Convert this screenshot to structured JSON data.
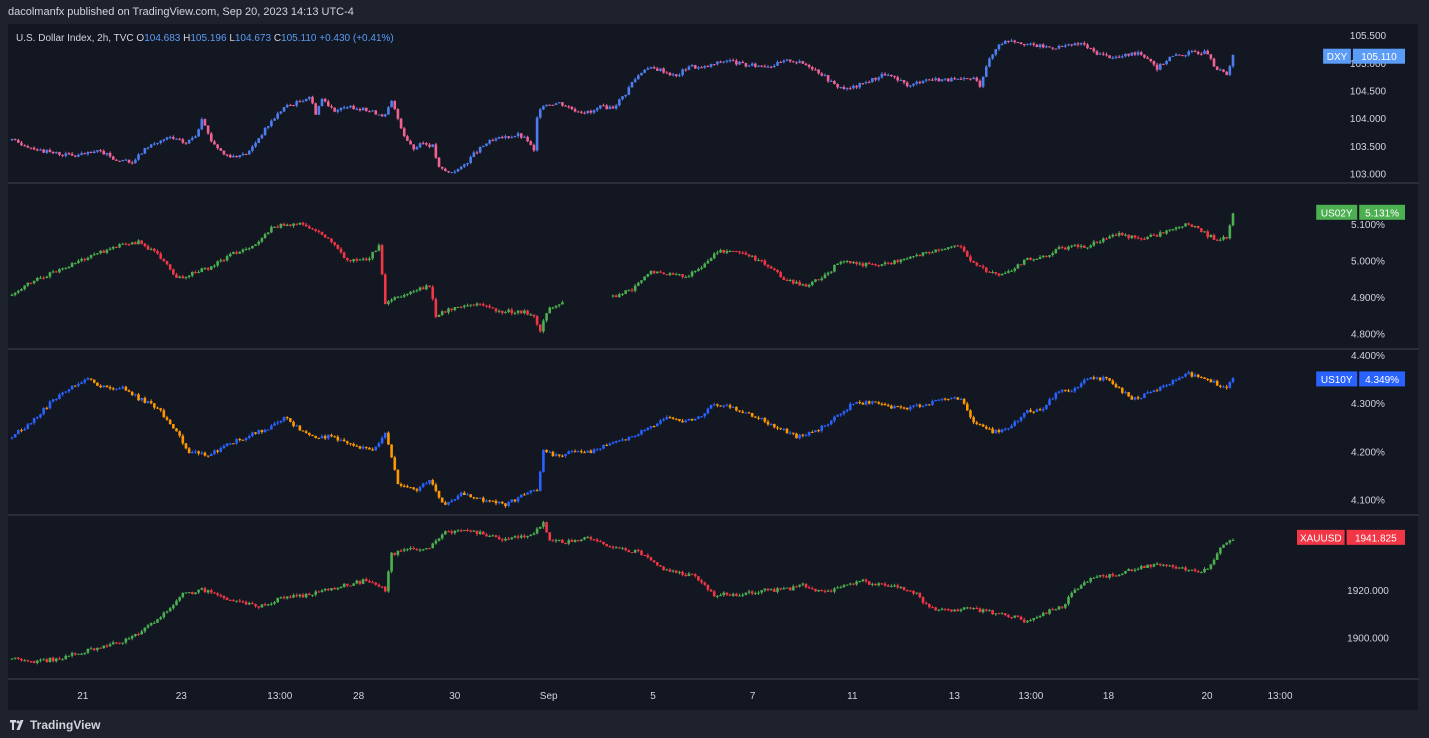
{
  "header": {
    "publisher": "dacolmanfx published on TradingView.com, Sep 20, 2023 14:13 UTC-4"
  },
  "footer": {
    "brand": "TradingView"
  },
  "colors": {
    "background": "#131722",
    "frame": "#1e222d",
    "axis_text": "#d1d4dc",
    "legend_blue": "#5b9cf6"
  },
  "chart_data": [
    {
      "type": "candlestick",
      "symbol": "DXY",
      "legend": {
        "name": "U.S. Dollar Index, 2h, TVC",
        "o_label": "O",
        "o": "104.683",
        "h_label": "H",
        "h": "105.196",
        "l_label": "L",
        "l": "104.673",
        "c_label": "C",
        "c": "105.110",
        "change": "+0.430 (+0.41%)"
      },
      "up_color": "#4c7ef0",
      "down_color": "#f06292",
      "price_label": "105.110",
      "label_color": "#5b9cf6",
      "ylim": [
        102.85,
        105.7
      ],
      "yticks": [
        "105.500",
        "105.000",
        "104.500",
        "104.000",
        "103.500",
        "103.000"
      ],
      "path": [
        [
          0,
          103.6
        ],
        [
          10,
          103.4
        ],
        [
          20,
          103.32
        ],
        [
          28,
          103.4
        ],
        [
          33,
          103.25
        ],
        [
          38,
          103.2
        ],
        [
          43,
          103.5
        ],
        [
          50,
          103.65
        ],
        [
          55,
          103.55
        ],
        [
          58,
          103.7
        ],
        [
          60,
          103.95
        ],
        [
          63,
          103.6
        ],
        [
          67,
          103.35
        ],
        [
          72,
          103.3
        ],
        [
          75,
          103.4
        ],
        [
          78,
          103.65
        ],
        [
          82,
          103.95
        ],
        [
          86,
          104.2
        ],
        [
          90,
          104.28
        ],
        [
          94,
          104.4
        ],
        [
          96,
          104.1
        ],
        [
          98,
          104.35
        ],
        [
          102,
          104.15
        ],
        [
          108,
          104.2
        ],
        [
          115,
          104.1
        ],
        [
          118,
          104.05
        ],
        [
          120,
          104.3
        ],
        [
          122,
          104.0
        ],
        [
          124,
          103.7
        ],
        [
          127,
          103.45
        ],
        [
          130,
          103.55
        ],
        [
          133,
          103.5
        ],
        [
          135,
          103.1
        ],
        [
          138,
          103.02
        ],
        [
          142,
          103.1
        ],
        [
          146,
          103.35
        ],
        [
          150,
          103.55
        ],
        [
          155,
          103.65
        ],
        [
          160,
          103.7
        ],
        [
          163,
          103.6
        ],
        [
          165,
          103.4
        ],
        [
          166,
          104.0
        ],
        [
          168,
          104.25
        ],
        [
          173,
          104.28
        ],
        [
          178,
          104.15
        ],
        [
          183,
          104.1
        ],
        [
          186,
          104.2
        ],
        [
          190,
          104.2
        ],
        [
          194,
          104.45
        ],
        [
          196,
          104.65
        ],
        [
          200,
          104.9
        ],
        [
          205,
          104.88
        ],
        [
          210,
          104.75
        ],
        [
          214,
          104.95
        ],
        [
          218,
          104.9
        ],
        [
          226,
          105.05
        ],
        [
          232,
          104.95
        ],
        [
          240,
          104.95
        ],
        [
          246,
          105.05
        ],
        [
          252,
          104.95
        ],
        [
          256,
          104.8
        ],
        [
          260,
          104.6
        ],
        [
          264,
          104.52
        ],
        [
          268,
          104.6
        ],
        [
          272,
          104.7
        ],
        [
          276,
          104.8
        ],
        [
          280,
          104.68
        ],
        [
          284,
          104.58
        ],
        [
          288,
          104.7
        ],
        [
          294,
          104.7
        ],
        [
          300,
          104.68
        ],
        [
          304,
          104.72
        ],
        [
          306,
          104.6
        ],
        [
          308,
          104.95
        ],
        [
          312,
          105.35
        ],
        [
          316,
          105.42
        ],
        [
          322,
          105.32
        ],
        [
          328,
          105.28
        ],
        [
          334,
          105.3
        ],
        [
          338,
          105.35
        ],
        [
          342,
          105.2
        ],
        [
          346,
          105.12
        ],
        [
          350,
          105.1
        ],
        [
          356,
          105.2
        ],
        [
          360,
          105.05
        ],
        [
          362,
          104.9
        ],
        [
          366,
          105.1
        ],
        [
          370,
          105.15
        ],
        [
          374,
          105.2
        ],
        [
          378,
          105.18
        ],
        [
          380,
          104.9
        ],
        [
          384,
          104.8
        ],
        [
          386,
          105.15
        ]
      ]
    },
    {
      "type": "candlestick",
      "symbol": "US02Y",
      "up_color": "#4caf50",
      "down_color": "#f23645",
      "price_label": "5.131%",
      "label_color": "#4caf50",
      "ylim": [
        4.76,
        5.21
      ],
      "yticks": [
        "5.100%",
        "5.000%",
        "4.900%",
        "4.800%"
      ],
      "path": [
        [
          0,
          4.91
        ],
        [
          8,
          4.95
        ],
        [
          16,
          4.98
        ],
        [
          24,
          5.01
        ],
        [
          30,
          5.03
        ],
        [
          36,
          5.045
        ],
        [
          40,
          5.05
        ],
        [
          44,
          5.03
        ],
        [
          48,
          5.0
        ],
        [
          52,
          4.95
        ],
        [
          56,
          4.96
        ],
        [
          62,
          4.98
        ],
        [
          70,
          5.02
        ],
        [
          78,
          5.05
        ],
        [
          82,
          5.09
        ],
        [
          86,
          5.1
        ],
        [
          92,
          5.1
        ],
        [
          96,
          5.08
        ],
        [
          100,
          5.06
        ],
        [
          102,
          5.04
        ],
        [
          106,
          5.0
        ],
        [
          112,
          5.0
        ],
        [
          116,
          5.04
        ],
        [
          118,
          4.88
        ],
        [
          122,
          4.9
        ],
        [
          128,
          4.92
        ],
        [
          132,
          4.93
        ],
        [
          134,
          4.85
        ],
        [
          140,
          4.87
        ],
        [
          146,
          4.88
        ],
        [
          150,
          4.87
        ],
        [
          156,
          4.86
        ],
        [
          162,
          4.86
        ],
        [
          165,
          4.85
        ],
        [
          167,
          4.81
        ],
        [
          170,
          4.87
        ],
        [
          174,
          4.89
        ],
        [
          176,
          null
        ],
        [
          188,
          null
        ],
        [
          190,
          4.9
        ],
        [
          196,
          4.92
        ],
        [
          202,
          4.97
        ],
        [
          208,
          4.96
        ],
        [
          214,
          4.96
        ],
        [
          218,
          4.98
        ],
        [
          222,
          5.02
        ],
        [
          228,
          5.03
        ],
        [
          234,
          5.01
        ],
        [
          240,
          4.98
        ],
        [
          244,
          4.95
        ],
        [
          250,
          4.93
        ],
        [
          256,
          4.95
        ],
        [
          262,
          5.0
        ],
        [
          268,
          4.99
        ],
        [
          276,
          4.99
        ],
        [
          282,
          5.0
        ],
        [
          288,
          5.02
        ],
        [
          294,
          5.03
        ],
        [
          300,
          5.04
        ],
        [
          304,
          4.99
        ],
        [
          308,
          4.97
        ],
        [
          312,
          4.96
        ],
        [
          316,
          4.97
        ],
        [
          320,
          5.0
        ],
        [
          326,
          5.01
        ],
        [
          330,
          5.03
        ],
        [
          336,
          5.04
        ],
        [
          340,
          5.04
        ],
        [
          346,
          5.06
        ],
        [
          350,
          5.07
        ],
        [
          356,
          5.06
        ],
        [
          362,
          5.07
        ],
        [
          368,
          5.09
        ],
        [
          372,
          5.1
        ],
        [
          376,
          5.08
        ],
        [
          380,
          5.06
        ],
        [
          384,
          5.06
        ],
        [
          386,
          5.131
        ]
      ]
    },
    {
      "type": "candlestick",
      "symbol": "US10Y",
      "up_color": "#2962ff",
      "down_color": "#ff9800",
      "price_label": "4.349%",
      "label_color": "#2962ff",
      "ylim": [
        4.07,
        4.41
      ],
      "yticks": [
        "4.400%",
        "4.300%",
        "4.200%",
        "4.100%"
      ],
      "path": [
        [
          0,
          4.23
        ],
        [
          6,
          4.26
        ],
        [
          12,
          4.3
        ],
        [
          18,
          4.33
        ],
        [
          24,
          4.35
        ],
        [
          30,
          4.33
        ],
        [
          36,
          4.33
        ],
        [
          40,
          4.31
        ],
        [
          46,
          4.29
        ],
        [
          52,
          4.24
        ],
        [
          56,
          4.2
        ],
        [
          62,
          4.19
        ],
        [
          70,
          4.22
        ],
        [
          78,
          4.24
        ],
        [
          82,
          4.25
        ],
        [
          86,
          4.27
        ],
        [
          92,
          4.24
        ],
        [
          96,
          4.23
        ],
        [
          102,
          4.23
        ],
        [
          108,
          4.21
        ],
        [
          114,
          4.2
        ],
        [
          118,
          4.24
        ],
        [
          122,
          4.13
        ],
        [
          128,
          4.12
        ],
        [
          132,
          4.14
        ],
        [
          136,
          4.09
        ],
        [
          142,
          4.11
        ],
        [
          148,
          4.1
        ],
        [
          156,
          4.09
        ],
        [
          162,
          4.11
        ],
        [
          166,
          4.12
        ],
        [
          168,
          4.2
        ],
        [
          172,
          4.19
        ],
        [
          178,
          4.2
        ],
        [
          184,
          4.2
        ],
        [
          190,
          4.22
        ],
        [
          196,
          4.23
        ],
        [
          202,
          4.25
        ],
        [
          206,
          4.27
        ],
        [
          212,
          4.26
        ],
        [
          218,
          4.27
        ],
        [
          222,
          4.3
        ],
        [
          228,
          4.29
        ],
        [
          236,
          4.27
        ],
        [
          242,
          4.25
        ],
        [
          248,
          4.23
        ],
        [
          254,
          4.24
        ],
        [
          260,
          4.27
        ],
        [
          266,
          4.3
        ],
        [
          272,
          4.3
        ],
        [
          278,
          4.29
        ],
        [
          284,
          4.29
        ],
        [
          290,
          4.3
        ],
        [
          296,
          4.31
        ],
        [
          300,
          4.31
        ],
        [
          304,
          4.26
        ],
        [
          310,
          4.24
        ],
        [
          316,
          4.25
        ],
        [
          320,
          4.28
        ],
        [
          326,
          4.29
        ],
        [
          330,
          4.32
        ],
        [
          336,
          4.33
        ],
        [
          340,
          4.35
        ],
        [
          346,
          4.35
        ],
        [
          350,
          4.33
        ],
        [
          354,
          4.31
        ],
        [
          360,
          4.32
        ],
        [
          366,
          4.34
        ],
        [
          372,
          4.36
        ],
        [
          378,
          4.35
        ],
        [
          384,
          4.33
        ],
        [
          386,
          4.349
        ]
      ]
    },
    {
      "type": "candlestick",
      "symbol": "XAUUSD",
      "up_color": "#4caf50",
      "down_color": "#f23645",
      "price_label": "1941.825",
      "label_color": "#f23645",
      "ylim": [
        1883,
        1951
      ],
      "yticks": [
        "1920.000",
        "1900.000"
      ],
      "path": [
        [
          0,
          1891
        ],
        [
          8,
          1890
        ],
        [
          14,
          1891
        ],
        [
          20,
          1893
        ],
        [
          28,
          1896
        ],
        [
          34,
          1898
        ],
        [
          40,
          1902
        ],
        [
          46,
          1907
        ],
        [
          54,
          1918
        ],
        [
          60,
          1920
        ],
        [
          66,
          1917
        ],
        [
          72,
          1915
        ],
        [
          78,
          1913
        ],
        [
          86,
          1917
        ],
        [
          94,
          1918
        ],
        [
          100,
          1920
        ],
        [
          106,
          1922
        ],
        [
          112,
          1924
        ],
        [
          118,
          1920
        ],
        [
          120,
          1935
        ],
        [
          126,
          1937
        ],
        [
          132,
          1937
        ],
        [
          136,
          1944
        ],
        [
          144,
          1945
        ],
        [
          150,
          1943
        ],
        [
          156,
          1941
        ],
        [
          164,
          1943
        ],
        [
          168,
          1948
        ],
        [
          170,
          1941
        ],
        [
          176,
          1940
        ],
        [
          182,
          1942
        ],
        [
          186,
          1940
        ],
        [
          192,
          1937
        ],
        [
          198,
          1936
        ],
        [
          204,
          1930
        ],
        [
          210,
          1927
        ],
        [
          216,
          1926
        ],
        [
          222,
          1918
        ],
        [
          230,
          1918
        ],
        [
          238,
          1920
        ],
        [
          244,
          1920
        ],
        [
          250,
          1922
        ],
        [
          256,
          1919
        ],
        [
          262,
          1921
        ],
        [
          268,
          1924
        ],
        [
          274,
          1922
        ],
        [
          280,
          1921
        ],
        [
          286,
          1918
        ],
        [
          290,
          1912
        ],
        [
          296,
          1911
        ],
        [
          302,
          1912
        ],
        [
          308,
          1911
        ],
        [
          316,
          1909
        ],
        [
          320,
          1907
        ],
        [
          326,
          1910
        ],
        [
          332,
          1913
        ],
        [
          336,
          1920
        ],
        [
          342,
          1925
        ],
        [
          348,
          1926
        ],
        [
          356,
          1929
        ],
        [
          362,
          1931
        ],
        [
          368,
          1929
        ],
        [
          374,
          1928
        ],
        [
          378,
          1928
        ],
        [
          382,
          1938
        ],
        [
          386,
          1941.825
        ]
      ]
    }
  ],
  "x_axis": {
    "ticks": [
      {
        "label": "21",
        "pos": 0.03
      },
      {
        "label": "23",
        "pos": 0.115
      },
      {
        "label": "13:00",
        "pos": 0.2
      },
      {
        "label": "28",
        "pos": 0.268
      },
      {
        "label": "30",
        "pos": 0.351
      },
      {
        "label": "Sep",
        "pos": 0.432
      },
      {
        "label": "5",
        "pos": 0.522
      },
      {
        "label": "7",
        "pos": 0.608
      },
      {
        "label": "11",
        "pos": 0.694
      },
      {
        "label": "13",
        "pos": 0.782
      },
      {
        "label": "13:00",
        "pos": 0.848
      },
      {
        "label": "18",
        "pos": 0.915
      },
      {
        "label": "20",
        "pos": 1.0
      },
      {
        "label": "13:00",
        "pos": 1.063
      }
    ]
  }
}
